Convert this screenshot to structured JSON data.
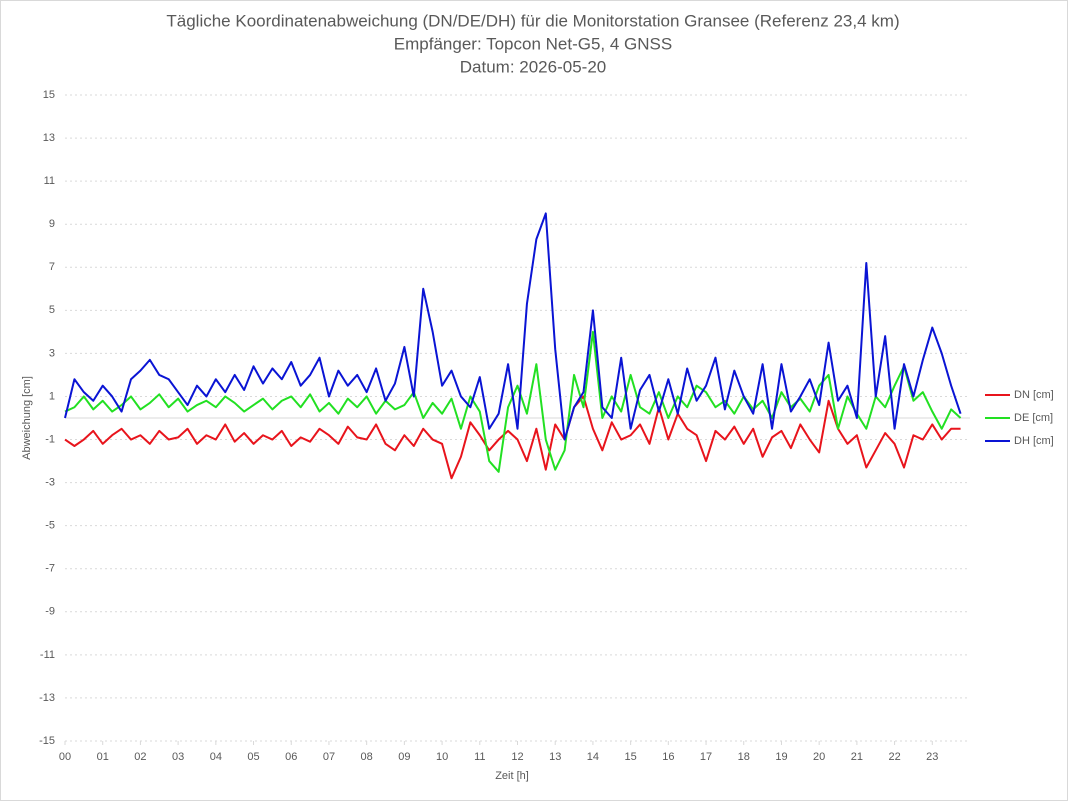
{
  "chart_data": {
    "type": "line",
    "title": "Tägliche Koordinatenabweichung (DN/DE/DH) für die Monitorstation Gransee (Referenz 23,4 km)",
    "subtitle": [
      "Empfänger: Topcon Net-G5, 4 GNSS",
      "Datum: 2026-05-20"
    ],
    "x_label": "Zeit [h]",
    "y_label": "Abweichung [cm]",
    "xlim": [
      0,
      24
    ],
    "xticks": [
      {
        "value": 0,
        "label": "00"
      },
      {
        "value": 1,
        "label": "01"
      },
      {
        "value": 2,
        "label": "02"
      },
      {
        "value": 3,
        "label": "03"
      },
      {
        "value": 4,
        "label": "04"
      },
      {
        "value": 5,
        "label": "05"
      },
      {
        "value": 6,
        "label": "06"
      },
      {
        "value": 7,
        "label": "07"
      },
      {
        "value": 8,
        "label": "08"
      },
      {
        "value": 9,
        "label": "09"
      },
      10,
      11,
      12,
      13,
      14,
      15,
      16,
      17,
      18,
      19,
      20,
      21,
      22,
      23
    ],
    "ylim": [
      -15,
      15
    ],
    "yticks": [
      -15,
      -13,
      -11,
      -9,
      -7,
      -5,
      -3,
      -1,
      1,
      3,
      5,
      7,
      9,
      11,
      13,
      15
    ],
    "grid": true,
    "legend": "right",
    "x": [
      0,
      0.25,
      0.5,
      0.75,
      1,
      1.25,
      1.5,
      1.75,
      2,
      2.25,
      2.5,
      2.75,
      3,
      3.25,
      3.5,
      3.75,
      4,
      4.25,
      4.5,
      4.75,
      5,
      5.25,
      5.5,
      5.75,
      6,
      6.25,
      6.5,
      6.75,
      7,
      7.25,
      7.5,
      7.75,
      8,
      8.25,
      8.5,
      8.75,
      9,
      9.25,
      9.5,
      9.75,
      10,
      10.25,
      10.5,
      10.75,
      11,
      11.25,
      11.5,
      11.75,
      12,
      12.25,
      12.5,
      12.75,
      13,
      13.25,
      13.5,
      13.75,
      14,
      14.25,
      14.5,
      14.75,
      15,
      15.25,
      15.5,
      15.75,
      16,
      16.25,
      16.5,
      16.75,
      17,
      17.25,
      17.5,
      17.75,
      18,
      18.25,
      18.5,
      18.75,
      19,
      19.25,
      19.5,
      19.75,
      20,
      20.25,
      20.5,
      20.75,
      21,
      21.25,
      21.5,
      21.75,
      22,
      22.25,
      22.5,
      22.75,
      23,
      23.25,
      23.5,
      23.75
    ],
    "series": [
      {
        "name": "DN [cm]",
        "color": "#e8141c",
        "values": [
          -1.0,
          -1.3,
          -1.0,
          -0.6,
          -1.2,
          -0.8,
          -0.5,
          -1.0,
          -0.8,
          -1.2,
          -0.6,
          -1.0,
          -0.9,
          -0.5,
          -1.2,
          -0.8,
          -1.0,
          -0.3,
          -1.1,
          -0.7,
          -1.2,
          -0.8,
          -1.0,
          -0.6,
          -1.3,
          -0.9,
          -1.1,
          -0.5,
          -0.8,
          -1.2,
          -0.4,
          -0.9,
          -1.0,
          -0.3,
          -1.2,
          -1.5,
          -0.8,
          -1.3,
          -0.5,
          -1.0,
          -1.2,
          -2.8,
          -1.8,
          -0.2,
          -0.8,
          -1.5,
          -1.0,
          -0.6,
          -1.0,
          -2.0,
          -0.5,
          -2.4,
          -0.3,
          -1.0,
          0.5,
          1.0,
          -0.5,
          -1.5,
          -0.2,
          -1.0,
          -0.8,
          -0.3,
          -1.2,
          0.5,
          -1.0,
          0.2,
          -0.5,
          -0.8,
          -2.0,
          -0.6,
          -1.0,
          -0.4,
          -1.2,
          -0.5,
          -1.8,
          -0.9,
          -0.6,
          -1.4,
          -0.3,
          -1.0,
          -1.6,
          0.8,
          -0.5,
          -1.2,
          -0.8,
          -2.3,
          -1.5,
          -0.7,
          -1.2,
          -2.3,
          -0.8,
          -1.0,
          -0.3,
          -1.0,
          -0.5,
          -0.5
        ]
      },
      {
        "name": "DE [cm]",
        "color": "#22e022",
        "values": [
          0.3,
          0.5,
          1.0,
          0.4,
          0.8,
          0.3,
          0.6,
          1.0,
          0.4,
          0.7,
          1.1,
          0.5,
          0.9,
          0.3,
          0.6,
          0.8,
          0.5,
          1.0,
          0.7,
          0.3,
          0.6,
          0.9,
          0.4,
          0.8,
          1.0,
          0.5,
          1.1,
          0.3,
          0.7,
          0.2,
          0.9,
          0.5,
          1.0,
          0.2,
          0.8,
          0.4,
          0.6,
          1.2,
          0.0,
          0.7,
          0.2,
          0.9,
          -0.5,
          1.0,
          0.3,
          -2.0,
          -2.5,
          0.5,
          1.5,
          0.2,
          2.5,
          -1.0,
          -2.4,
          -1.5,
          2.0,
          0.5,
          4.0,
          0.0,
          1.0,
          0.3,
          2.0,
          0.5,
          0.2,
          1.2,
          0.0,
          1.0,
          0.5,
          1.5,
          1.2,
          0.5,
          0.8,
          0.2,
          1.0,
          0.4,
          0.8,
          0.0,
          1.2,
          0.5,
          0.9,
          0.3,
          1.5,
          2.0,
          -0.5,
          1.0,
          0.2,
          -0.5,
          1.0,
          0.5,
          1.5,
          2.4,
          0.8,
          1.2,
          0.3,
          -0.5,
          0.4,
          0.0
        ]
      },
      {
        "name": "DH [cm]",
        "color": "#0a14d4",
        "values": [
          0,
          1.8,
          1.2,
          0.8,
          1.5,
          1.0,
          0.3,
          1.8,
          2.2,
          2.7,
          2.0,
          1.8,
          1.2,
          0.6,
          1.5,
          1.0,
          1.8,
          1.2,
          2.0,
          1.3,
          2.4,
          1.6,
          2.3,
          1.8,
          2.6,
          1.5,
          2.0,
          2.8,
          1.0,
          2.2,
          1.5,
          2.0,
          1.2,
          2.3,
          0.8,
          1.6,
          3.3,
          1.0,
          6.0,
          4.0,
          1.5,
          2.2,
          1.0,
          0.5,
          1.9,
          -0.5,
          0.2,
          2.5,
          -0.5,
          5.3,
          8.3,
          9.5,
          3.2,
          -1.0,
          0.5,
          1.2,
          5.0,
          0.5,
          0.0,
          2.8,
          -0.5,
          1.3,
          2.0,
          0.3,
          1.8,
          0.2,
          2.3,
          0.8,
          1.5,
          2.8,
          0.4,
          2.2,
          1.0,
          0.2,
          2.5,
          -0.5,
          2.5,
          0.3,
          1.0,
          1.8,
          0.6,
          3.5,
          0.8,
          1.5,
          0.0,
          7.2,
          1.0,
          3.8,
          -0.5,
          2.5,
          1.0,
          2.7,
          4.2,
          3.0,
          1.5,
          0.2
        ]
      }
    ]
  }
}
